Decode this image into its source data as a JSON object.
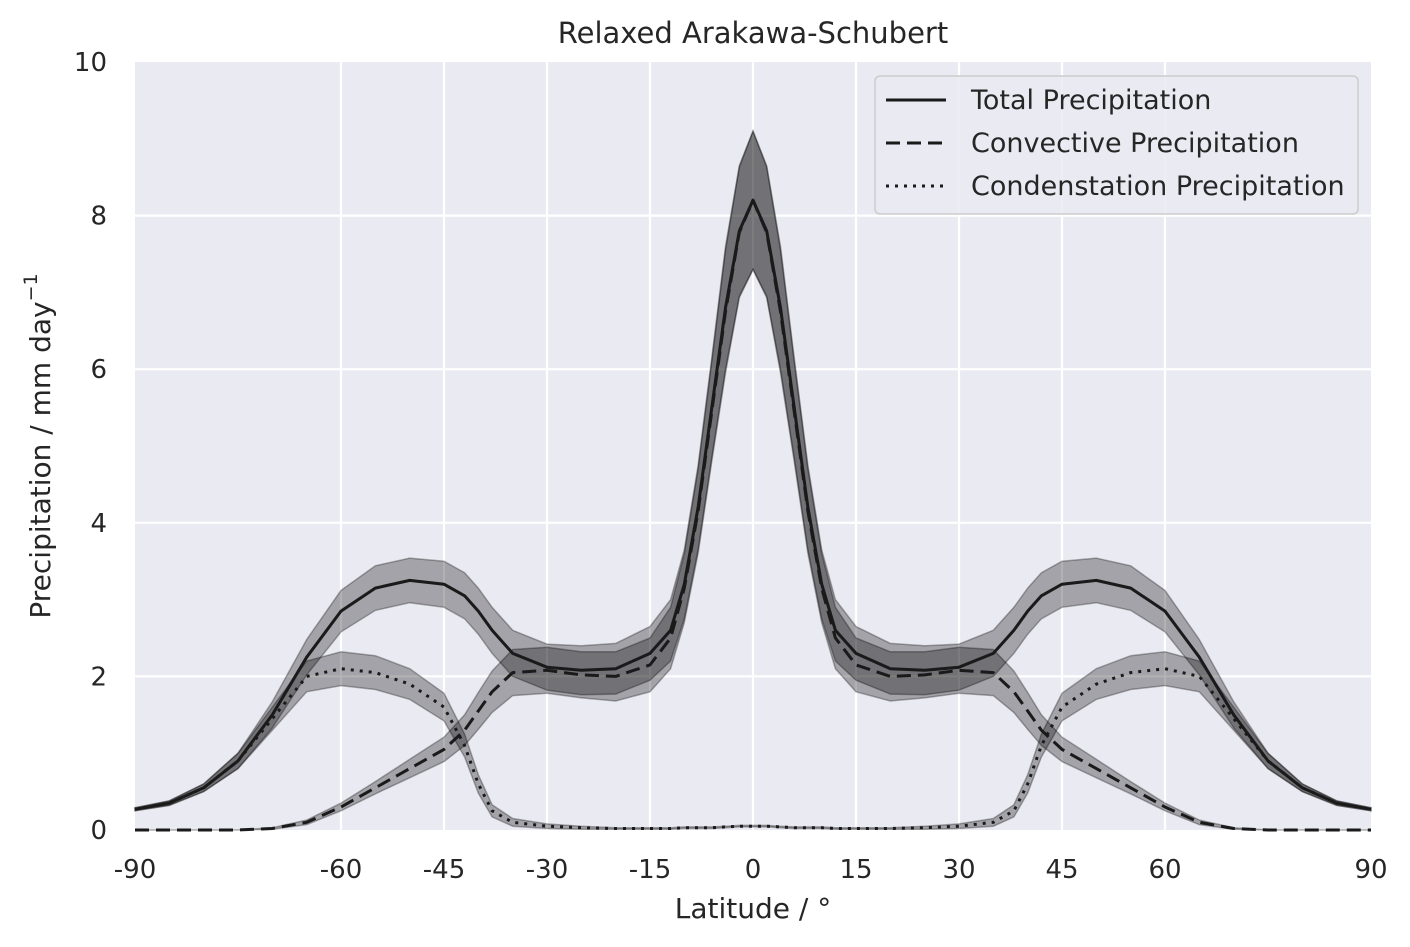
{
  "chart_data": {
    "type": "line",
    "title": "Relaxed Arakawa-Schubert",
    "xlabel": "Latitude / °",
    "ylabel": "Precipitation / mm day",
    "ylabel_superscript": "−1",
    "xlim": [
      -90,
      90
    ],
    "ylim": [
      0,
      10
    ],
    "xticks": [
      {
        "value": -90,
        "label": "-90"
      },
      {
        "value": -60,
        "label": "-60"
      },
      {
        "value": -45,
        "label": "-45"
      },
      {
        "value": -30,
        "label": "-30"
      },
      {
        "value": -15,
        "label": "-15"
      },
      {
        "value": 0,
        "label": "0"
      },
      {
        "value": 15,
        "label": "15"
      },
      {
        "value": 30,
        "label": "30"
      },
      {
        "value": 45,
        "label": "45"
      },
      {
        "value": 60,
        "label": "60"
      },
      {
        "value": 90,
        "label": "90"
      }
    ],
    "yticks": [
      {
        "value": 0,
        "label": "0"
      },
      {
        "value": 2,
        "label": "2"
      },
      {
        "value": 4,
        "label": "4"
      },
      {
        "value": 6,
        "label": "6"
      },
      {
        "value": 8,
        "label": "8"
      },
      {
        "value": 10,
        "label": "10"
      }
    ],
    "grid": true,
    "legend_position": "top-right",
    "colors": {
      "background": "#EAEAF2",
      "grid": "#ffffff",
      "line": "#1a1a1a",
      "band": "#000000"
    },
    "x": [
      -90,
      -85,
      -80,
      -75,
      -70,
      -65,
      -60,
      -55,
      -50,
      -45,
      -42,
      -40,
      -38,
      -35,
      -30,
      -25,
      -20,
      -15,
      -12,
      -10,
      -8,
      -6,
      -4,
      -2,
      0,
      2,
      4,
      6,
      8,
      10,
      12,
      15,
      20,
      25,
      30,
      35,
      38,
      40,
      42,
      45,
      50,
      55,
      60,
      65,
      70,
      75,
      80,
      85,
      90
    ],
    "series": [
      {
        "name": "Total Precipitation",
        "style": "solid",
        "values": [
          0.27,
          0.35,
          0.55,
          0.9,
          1.5,
          2.25,
          2.85,
          3.15,
          3.25,
          3.2,
          3.05,
          2.85,
          2.6,
          2.3,
          2.12,
          2.08,
          2.1,
          2.3,
          2.6,
          3.2,
          4.2,
          5.5,
          6.8,
          7.8,
          8.2,
          7.8,
          6.8,
          5.5,
          4.2,
          3.2,
          2.6,
          2.3,
          2.1,
          2.08,
          2.12,
          2.3,
          2.6,
          2.85,
          3.05,
          3.2,
          3.25,
          3.15,
          2.85,
          2.25,
          1.5,
          0.9,
          0.55,
          0.35,
          0.27
        ],
        "uncertainty": [
          0.02,
          0.03,
          0.05,
          0.1,
          0.17,
          0.23,
          0.27,
          0.29,
          0.29,
          0.3,
          0.3,
          0.3,
          0.3,
          0.3,
          0.3,
          0.32,
          0.33,
          0.35,
          0.4,
          0.45,
          0.55,
          0.65,
          0.8,
          0.85,
          0.9,
          0.85,
          0.8,
          0.65,
          0.55,
          0.45,
          0.4,
          0.35,
          0.33,
          0.32,
          0.3,
          0.3,
          0.3,
          0.3,
          0.3,
          0.3,
          0.29,
          0.29,
          0.27,
          0.23,
          0.17,
          0.1,
          0.05,
          0.03,
          0.02
        ]
      },
      {
        "name": "Convective Precipitation",
        "style": "dashed",
        "values": [
          0,
          0,
          0,
          0,
          0.02,
          0.1,
          0.3,
          0.55,
          0.8,
          1.05,
          1.3,
          1.55,
          1.8,
          2.05,
          2.08,
          2.02,
          2.0,
          2.15,
          2.5,
          3.15,
          4.15,
          5.45,
          6.75,
          7.78,
          8.2,
          7.78,
          6.75,
          5.45,
          4.15,
          3.15,
          2.5,
          2.15,
          2.0,
          2.02,
          2.08,
          2.05,
          1.8,
          1.55,
          1.3,
          1.05,
          0.8,
          0.55,
          0.3,
          0.1,
          0.02,
          0,
          0,
          0,
          0
        ],
        "uncertainty": [
          0,
          0,
          0,
          0,
          0.01,
          0.03,
          0.05,
          0.08,
          0.12,
          0.16,
          0.2,
          0.24,
          0.27,
          0.3,
          0.3,
          0.3,
          0.32,
          0.35,
          0.4,
          0.45,
          0.55,
          0.65,
          0.8,
          0.85,
          0.9,
          0.85,
          0.8,
          0.65,
          0.55,
          0.45,
          0.4,
          0.35,
          0.32,
          0.3,
          0.3,
          0.3,
          0.27,
          0.24,
          0.2,
          0.16,
          0.12,
          0.08,
          0.05,
          0.03,
          0.01,
          0,
          0,
          0,
          0
        ]
      },
      {
        "name": "Condenstation Precipitation",
        "style": "dotted",
        "values": [
          0.27,
          0.35,
          0.55,
          0.9,
          1.45,
          2.0,
          2.1,
          2.05,
          1.9,
          1.6,
          1.1,
          0.6,
          0.25,
          0.1,
          0.05,
          0.03,
          0.02,
          0.02,
          0.02,
          0.03,
          0.03,
          0.03,
          0.04,
          0.05,
          0.05,
          0.05,
          0.04,
          0.03,
          0.03,
          0.03,
          0.02,
          0.02,
          0.02,
          0.03,
          0.05,
          0.1,
          0.25,
          0.6,
          1.1,
          1.6,
          1.9,
          2.05,
          2.1,
          2.0,
          1.45,
          0.9,
          0.55,
          0.35,
          0.27
        ],
        "uncertainty": [
          0.02,
          0.03,
          0.05,
          0.1,
          0.15,
          0.2,
          0.22,
          0.22,
          0.2,
          0.18,
          0.15,
          0.12,
          0.08,
          0.05,
          0.03,
          0.02,
          0.01,
          0.01,
          0.01,
          0.01,
          0.01,
          0.01,
          0.01,
          0.01,
          0.01,
          0.01,
          0.01,
          0.01,
          0.01,
          0.01,
          0.01,
          0.01,
          0.01,
          0.02,
          0.03,
          0.05,
          0.08,
          0.12,
          0.15,
          0.18,
          0.2,
          0.22,
          0.22,
          0.2,
          0.15,
          0.1,
          0.05,
          0.03,
          0.02
        ]
      }
    ]
  }
}
